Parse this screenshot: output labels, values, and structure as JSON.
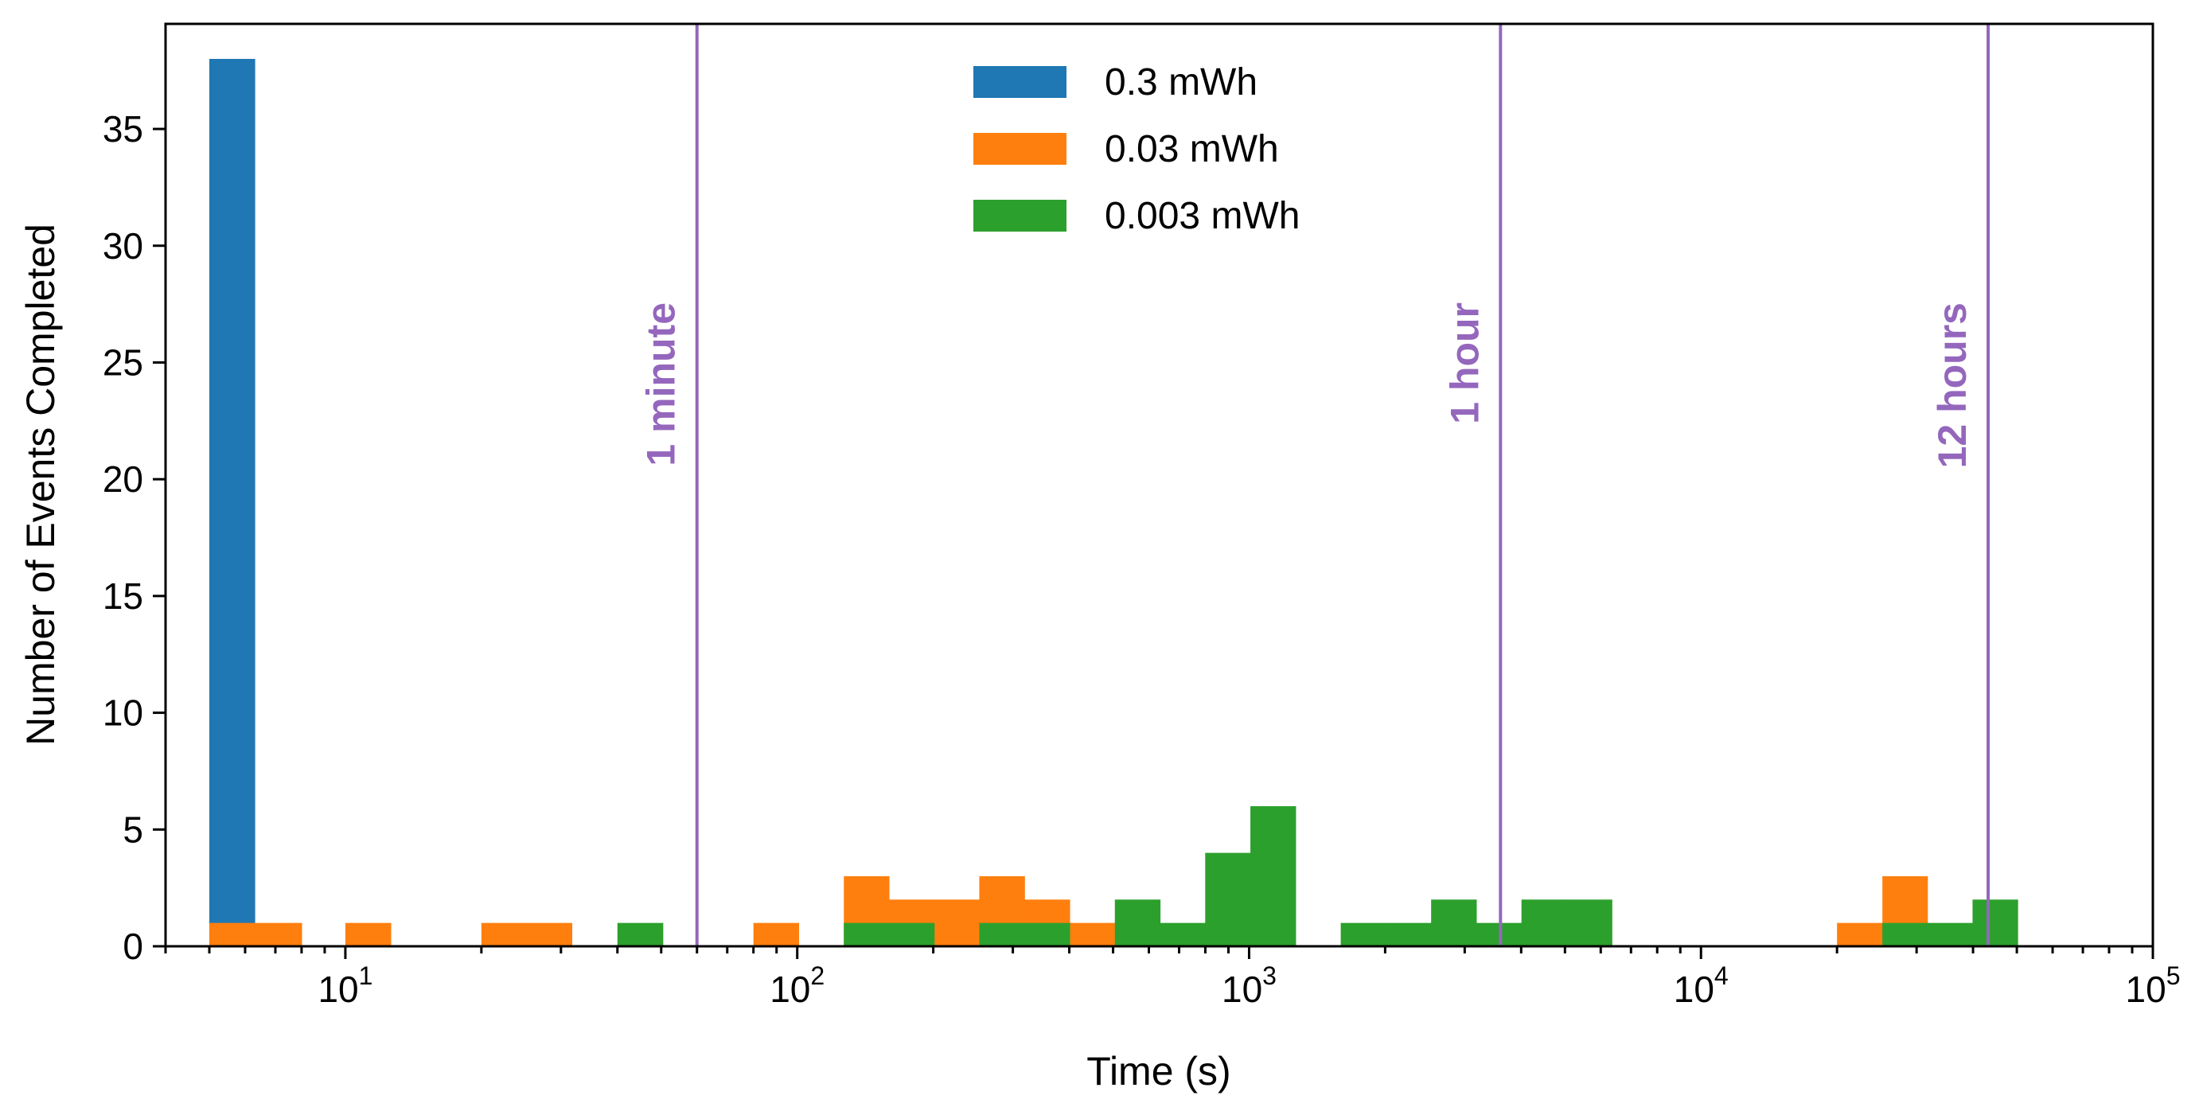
{
  "chart_data": {
    "type": "bar",
    "xscale": "log",
    "xlabel": "Time (s)",
    "ylabel": "Number of Events Completed",
    "xlim": [
      4.0,
      100000
    ],
    "ylim": [
      0,
      39.5
    ],
    "yticks": [
      0,
      5,
      10,
      15,
      20,
      25,
      30,
      35
    ],
    "xticks_major": [
      {
        "value": 10,
        "base": "10",
        "exp": "1"
      },
      {
        "value": 100,
        "base": "10",
        "exp": "2"
      },
      {
        "value": 1000,
        "base": "10",
        "exp": "3"
      },
      {
        "value": 10000,
        "base": "10",
        "exp": "4"
      },
      {
        "value": 100000,
        "base": "10",
        "exp": "5"
      }
    ],
    "grid": false,
    "legend_position": "top-center",
    "series": [
      {
        "name": "0.3 mWh",
        "color": "#1f77b4",
        "bins": [
          {
            "x0": 5.0,
            "x1": 6.3,
            "count": 38
          }
        ]
      },
      {
        "name": "0.03 mWh",
        "color": "#ff7f0e",
        "bins": [
          {
            "x0": 5.0,
            "x1": 6.3,
            "count": 1
          },
          {
            "x0": 6.3,
            "x1": 8.0,
            "count": 1
          },
          {
            "x0": 10.0,
            "x1": 12.6,
            "count": 1
          },
          {
            "x0": 20.0,
            "x1": 25.2,
            "count": 1
          },
          {
            "x0": 25.2,
            "x1": 31.7,
            "count": 1
          },
          {
            "x0": 80.0,
            "x1": 100.7,
            "count": 1
          },
          {
            "x0": 126.8,
            "x1": 159.6,
            "count": 3
          },
          {
            "x0": 159.6,
            "x1": 200.9,
            "count": 2
          },
          {
            "x0": 200.9,
            "x1": 252.9,
            "count": 2
          },
          {
            "x0": 252.9,
            "x1": 318.3,
            "count": 3
          },
          {
            "x0": 318.3,
            "x1": 400.7,
            "count": 2
          },
          {
            "x0": 400.7,
            "x1": 504.5,
            "count": 1
          },
          {
            "x0": 20000,
            "x1": 25200,
            "count": 1
          },
          {
            "x0": 25200,
            "x1": 31700,
            "count": 3
          }
        ]
      },
      {
        "name": "0.003 mWh",
        "color": "#2ca02c",
        "bins": [
          {
            "x0": 40.0,
            "x1": 50.4,
            "count": 1
          },
          {
            "x0": 126.8,
            "x1": 159.6,
            "count": 1
          },
          {
            "x0": 159.6,
            "x1": 200.9,
            "count": 1
          },
          {
            "x0": 252.9,
            "x1": 318.3,
            "count": 1
          },
          {
            "x0": 318.3,
            "x1": 400.7,
            "count": 1
          },
          {
            "x0": 504.5,
            "x1": 635.1,
            "count": 2
          },
          {
            "x0": 635.1,
            "x1": 799.5,
            "count": 1
          },
          {
            "x0": 799.5,
            "x1": 1006.5,
            "count": 4
          },
          {
            "x0": 1006.5,
            "x1": 1267.1,
            "count": 6
          },
          {
            "x0": 1595,
            "x1": 2008,
            "count": 1
          },
          {
            "x0": 2008,
            "x1": 2528,
            "count": 1
          },
          {
            "x0": 2528,
            "x1": 3182,
            "count": 2
          },
          {
            "x0": 3182,
            "x1": 4006,
            "count": 1
          },
          {
            "x0": 4006,
            "x1": 5043,
            "count": 2
          },
          {
            "x0": 5043,
            "x1": 6349,
            "count": 2
          },
          {
            "x0": 25200,
            "x1": 31700,
            "count": 1
          },
          {
            "x0": 31700,
            "x1": 39900,
            "count": 1
          },
          {
            "x0": 39900,
            "x1": 50200,
            "count": 2
          }
        ]
      }
    ],
    "vlines": [
      {
        "value": 60,
        "label": "1 minute",
        "color": "#9467bd"
      },
      {
        "value": 3600,
        "label": "1 hour",
        "color": "#9467bd"
      },
      {
        "value": 43200,
        "label": "12 hours",
        "color": "#9467bd"
      }
    ]
  }
}
